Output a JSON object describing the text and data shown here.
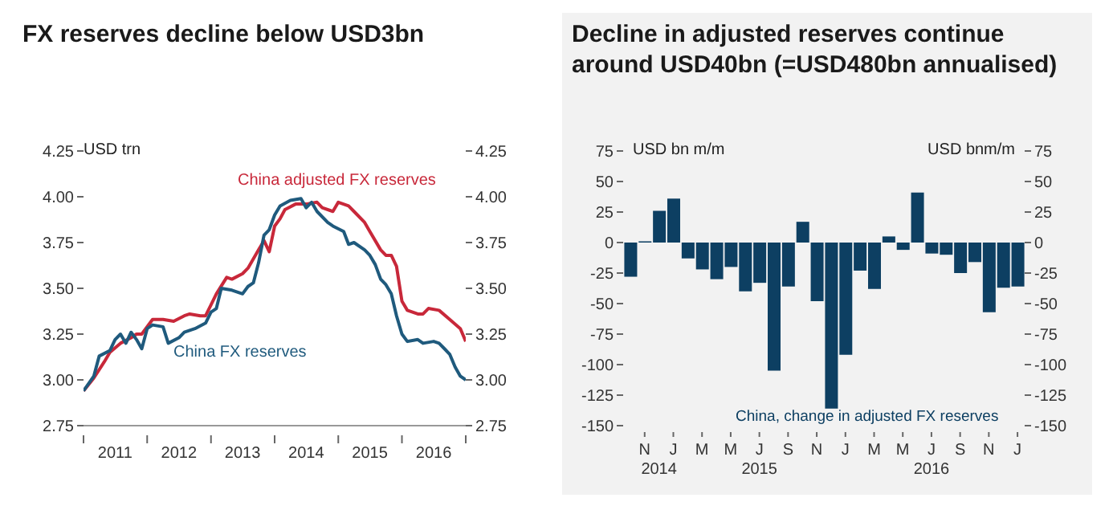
{
  "chart_data": [
    {
      "type": "line",
      "title": "FX reserves decline below USD3bn",
      "ylabel": "USD trn",
      "marker": "none",
      "xlim": [
        "2011-01",
        "2017-01"
      ],
      "xticks": [
        {
          "value": "2011-01",
          "label": null
        },
        {
          "value": "2011-07",
          "label": "2011"
        },
        {
          "value": "2012-01",
          "label": null
        },
        {
          "value": "2012-07",
          "label": "2012"
        },
        {
          "value": "2013-01",
          "label": null
        },
        {
          "value": "2013-07",
          "label": "2013"
        },
        {
          "value": "2014-01",
          "label": null
        },
        {
          "value": "2014-07",
          "label": "2014"
        },
        {
          "value": "2015-01",
          "label": null
        },
        {
          "value": "2015-07",
          "label": "2015"
        },
        {
          "value": "2016-01",
          "label": null
        },
        {
          "value": "2016-07",
          "label": "2016"
        },
        {
          "value": "2017-01",
          "label": null
        }
      ],
      "ylim": [
        2.75,
        4.25
      ],
      "yticks": [
        {
          "value": 2.75,
          "label": "2.75"
        },
        {
          "value": 3,
          "label": "3.00"
        },
        {
          "value": 3.25,
          "label": "3.25"
        },
        {
          "value": 3.5,
          "label": "3.50"
        },
        {
          "value": 3.75,
          "label": "3.75"
        },
        {
          "value": 4,
          "label": "4.00"
        },
        {
          "value": 4.25,
          "label": "4.25"
        }
      ],
      "y2lim": [
        2.75,
        4.25
      ],
      "y2ticks": [
        {
          "value": 2.75,
          "label": "2.75"
        },
        {
          "value": 3,
          "label": "3.00"
        },
        {
          "value": 3.25,
          "label": "3.25"
        },
        {
          "value": 3.5,
          "label": "3.50"
        },
        {
          "value": 3.75,
          "label": "3.75"
        },
        {
          "value": 4,
          "label": "4.00"
        },
        {
          "value": 4.25,
          "label": "4.25"
        }
      ],
      "series": [
        {
          "name": "China adjusted FX reserves",
          "color": "#c8283a",
          "x": [
            "2011-01",
            "2011-03",
            "2011-05",
            "2011-06",
            "2011-08",
            "2011-10",
            "2011-11",
            "2011-12",
            "2012-02",
            "2012-04",
            "2012-06",
            "2012-08",
            "2012-09",
            "2012-11",
            "2012-12",
            "2013-01",
            "2013-02",
            "2013-04",
            "2013-05",
            "2013-07",
            "2013-08",
            "2013-10",
            "2013-11",
            "2013-12",
            "2014-01",
            "2014-02",
            "2014-03",
            "2014-05",
            "2014-07",
            "2014-09",
            "2014-10",
            "2014-12",
            "2015-01",
            "2015-03",
            "2015-04",
            "2015-06",
            "2015-07",
            "2015-09",
            "2015-10",
            "2015-11",
            "2015-12",
            "2016-01",
            "2016-02",
            "2016-04",
            "2016-05",
            "2016-06",
            "2016-08",
            "2016-10",
            "2016-12",
            "2017-01"
          ],
          "values": [
            2.94,
            3.01,
            3.1,
            3.15,
            3.2,
            3.23,
            3.25,
            3.25,
            3.33,
            3.33,
            3.32,
            3.35,
            3.36,
            3.35,
            3.35,
            3.41,
            3.47,
            3.56,
            3.55,
            3.58,
            3.61,
            3.71,
            3.76,
            3.7,
            3.84,
            3.88,
            3.93,
            3.96,
            3.96,
            3.97,
            3.94,
            3.92,
            3.97,
            3.95,
            3.92,
            3.86,
            3.81,
            3.71,
            3.68,
            3.68,
            3.62,
            3.43,
            3.38,
            3.36,
            3.36,
            3.39,
            3.38,
            3.33,
            3.28,
            3.21
          ]
        },
        {
          "name": "China FX reserves",
          "color": "#1f5a7d",
          "x": [
            "2011-01",
            "2011-03",
            "2011-04",
            "2011-06",
            "2011-07",
            "2011-08",
            "2011-09",
            "2011-10",
            "2011-11",
            "2011-12",
            "2012-01",
            "2012-02",
            "2012-04",
            "2012-05",
            "2012-07",
            "2012-08",
            "2012-10",
            "2012-12",
            "2013-01",
            "2013-02",
            "2013-03",
            "2013-05",
            "2013-07",
            "2013-08",
            "2013-09",
            "2013-10",
            "2013-11",
            "2013-12",
            "2014-01",
            "2014-02",
            "2014-04",
            "2014-06",
            "2014-07",
            "2014-08",
            "2014-09",
            "2014-11",
            "2014-12",
            "2015-02",
            "2015-03",
            "2015-04",
            "2015-06",
            "2015-07",
            "2015-08",
            "2015-09",
            "2015-10",
            "2015-11",
            "2015-12",
            "2016-01",
            "2016-02",
            "2016-04",
            "2016-05",
            "2016-07",
            "2016-08",
            "2016-09",
            "2016-10",
            "2016-11",
            "2016-12",
            "2017-01"
          ],
          "values": [
            2.94,
            3.02,
            3.13,
            3.16,
            3.22,
            3.25,
            3.2,
            3.26,
            3.22,
            3.17,
            3.28,
            3.3,
            3.29,
            3.2,
            3.23,
            3.26,
            3.28,
            3.31,
            3.37,
            3.39,
            3.5,
            3.49,
            3.47,
            3.51,
            3.53,
            3.64,
            3.79,
            3.82,
            3.9,
            3.95,
            3.98,
            3.99,
            3.94,
            3.97,
            3.92,
            3.86,
            3.84,
            3.81,
            3.74,
            3.75,
            3.71,
            3.68,
            3.63,
            3.55,
            3.52,
            3.47,
            3.35,
            3.25,
            3.21,
            3.22,
            3.2,
            3.21,
            3.2,
            3.17,
            3.14,
            3.07,
            3.02,
            3.0
          ]
        }
      ]
    },
    {
      "type": "bar",
      "title": "Decline in adjusted reserves continue around USD40bn (=USD480bn annualised)",
      "ylabel": "USD bn m/m",
      "y2label": "USD bnm/m",
      "categories": [
        null,
        "N",
        "\n2014",
        "J",
        null,
        "M",
        null,
        "M",
        null,
        "J\n2015",
        null,
        "S",
        null,
        "N",
        null,
        "J",
        null,
        "M",
        null,
        "M",
        null,
        "J\n2016",
        null,
        "S",
        null,
        "N",
        null,
        "J"
      ],
      "ylim": [
        -150,
        75
      ],
      "yticks": [
        -150,
        -125,
        -100,
        -75,
        -50,
        -25,
        0,
        25,
        50,
        75
      ],
      "y2lim": [
        -150,
        75
      ],
      "y2ticks": [
        -150,
        -125,
        -100,
        -75,
        -50,
        -25,
        0,
        25,
        50,
        75
      ],
      "series": [
        {
          "name": "China, change in adjusted FX reserves",
          "color": "#0d3f62",
          "values": [
            -28,
            1,
            26,
            36,
            -13,
            -22,
            -30,
            -20,
            -40,
            -33,
            -105,
            -36,
            17,
            -48,
            -136,
            -92,
            -23,
            -38,
            5,
            -6,
            41,
            -9,
            -10,
            -25,
            -16,
            -57,
            -37,
            -36
          ]
        }
      ]
    }
  ]
}
